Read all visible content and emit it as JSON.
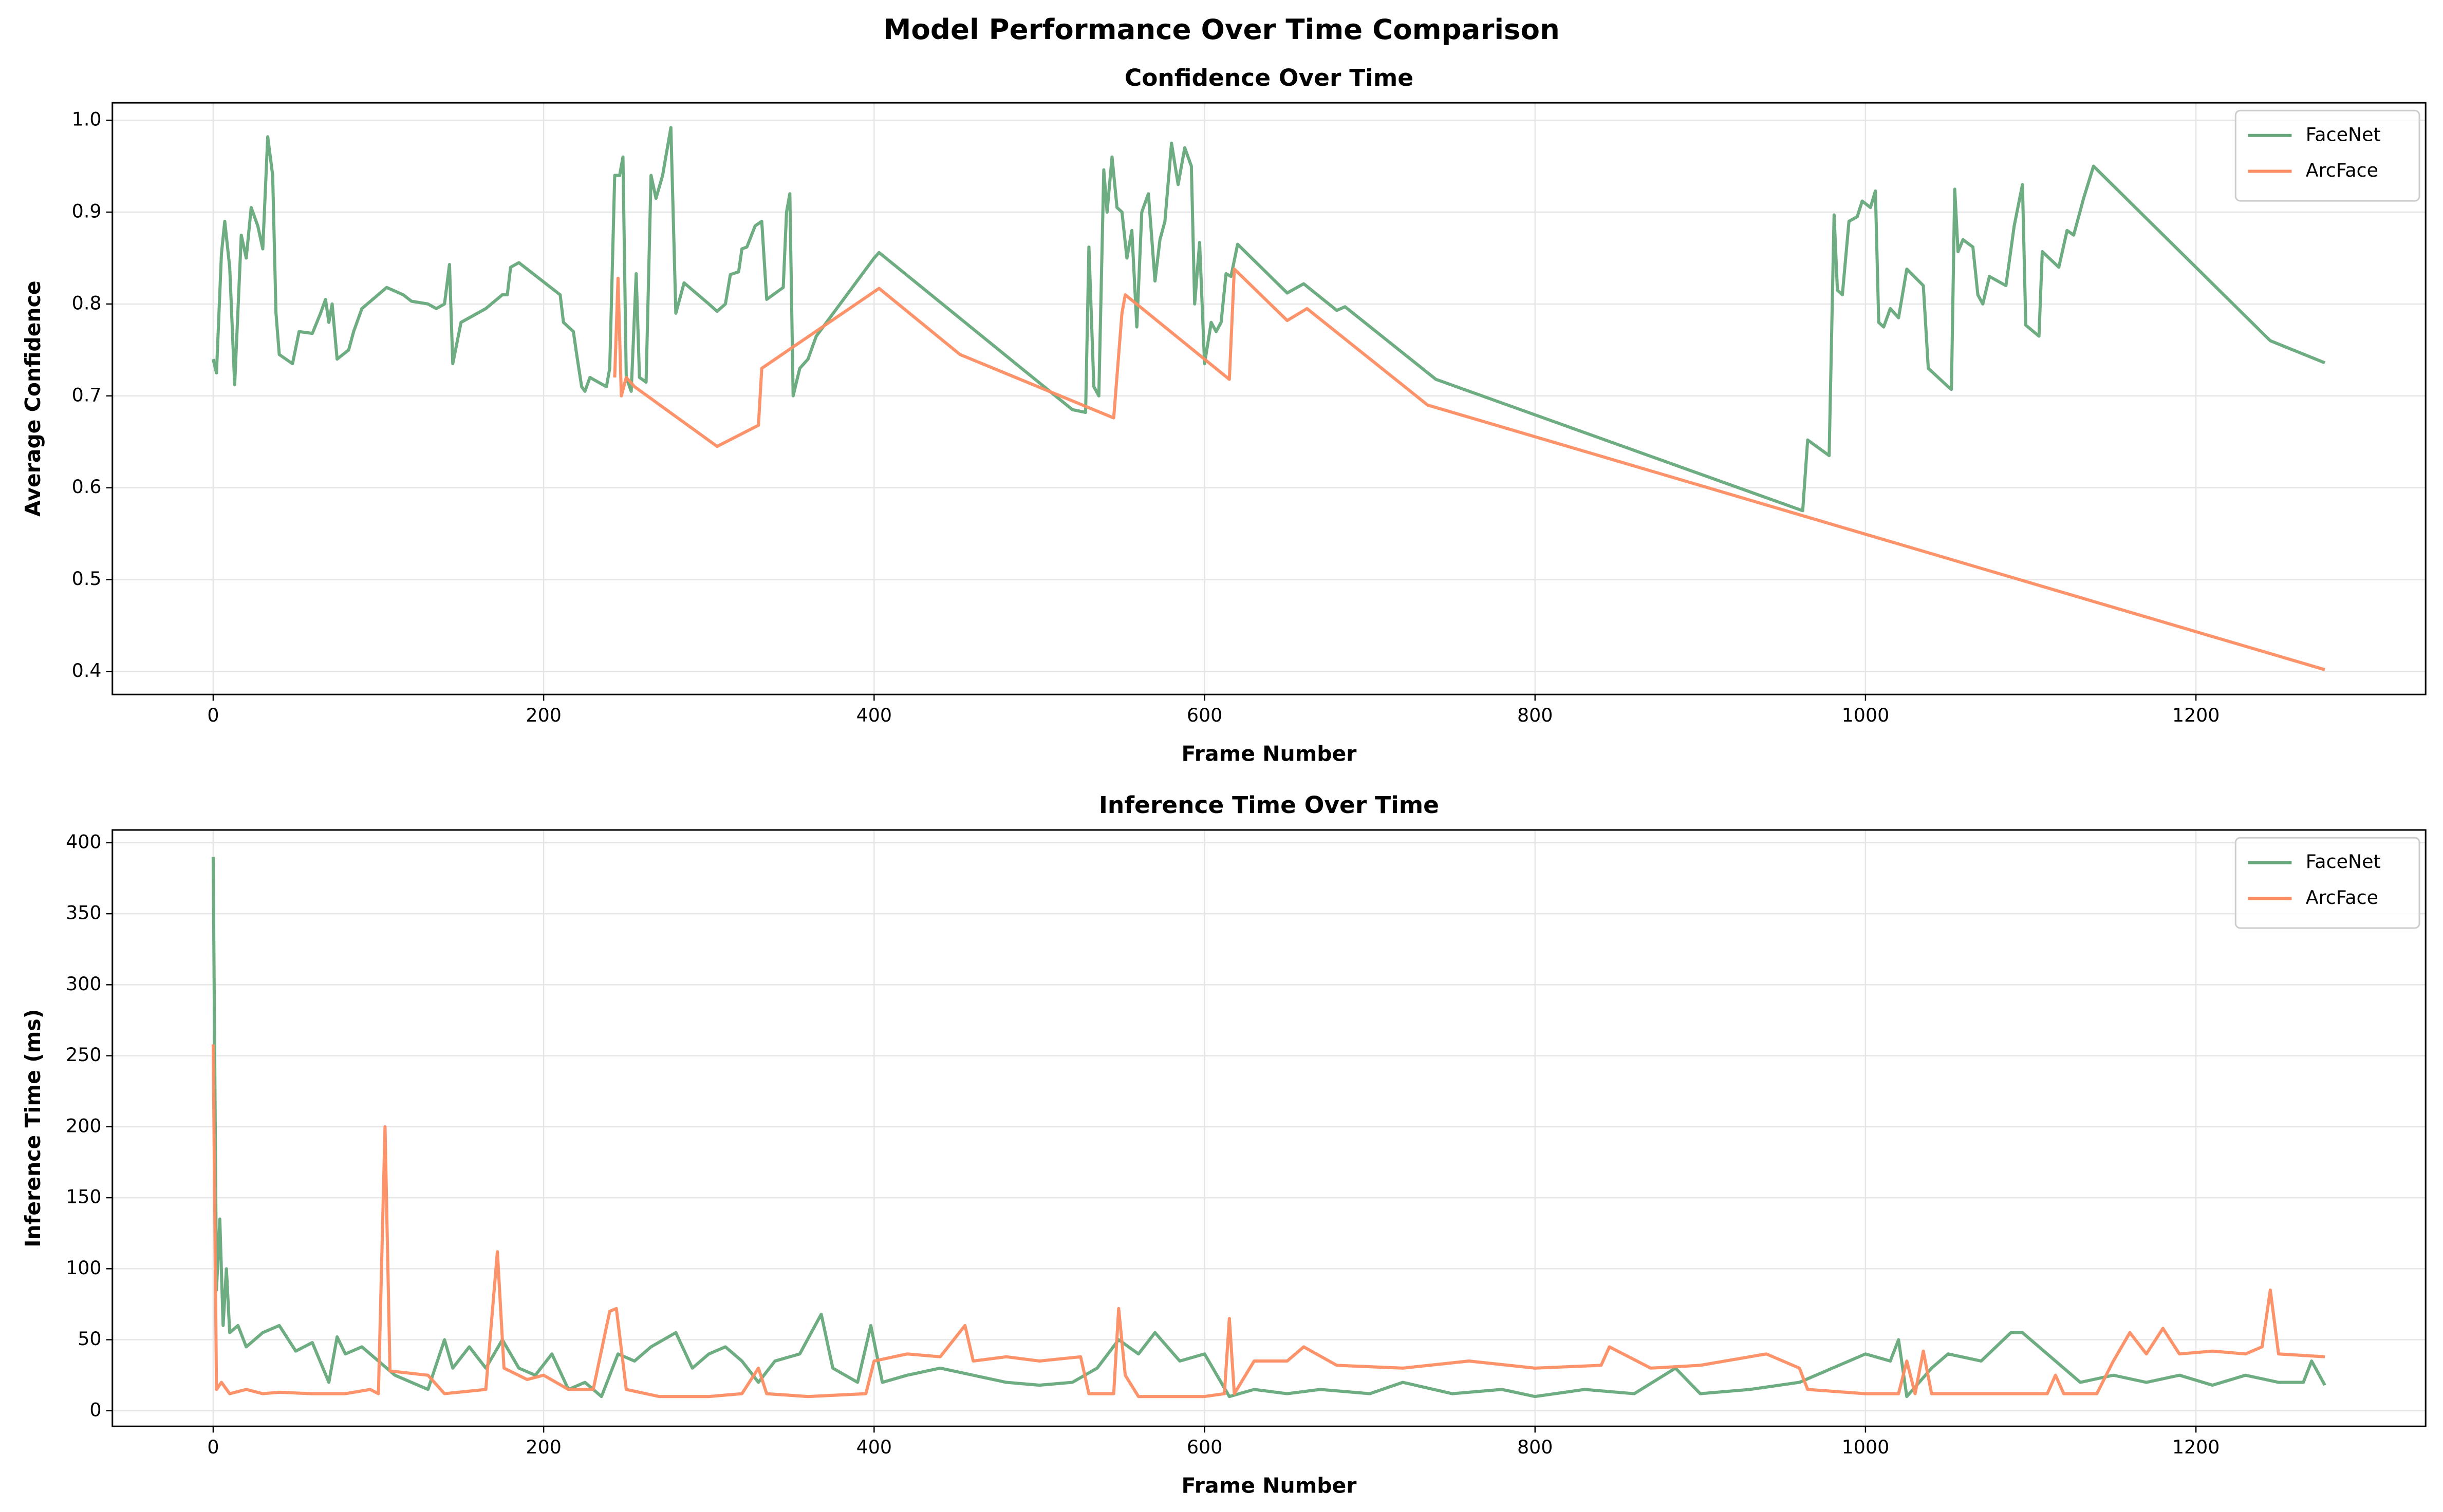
{
  "title": "Model Performance Over Time Comparison",
  "chart_data": [
    {
      "type": "line",
      "title": "Confidence Over Time",
      "xlabel": "Frame Number",
      "ylabel": "Average Confidence",
      "xlim": [
        -61,
        1339
      ],
      "ylim": [
        0.375,
        1.019
      ],
      "xticks": [
        0,
        200,
        400,
        600,
        800,
        1000,
        1200
      ],
      "yticks": [
        0.4,
        0.5,
        0.6,
        0.7,
        0.8,
        0.9,
        {
          "value": 1,
          "label": "1.0"
        }
      ],
      "grid": true,
      "legend": "upper right",
      "series": [
        {
          "name": "FaceNet",
          "color": "#66a87b",
          "x": [
            0,
            2,
            5,
            7,
            10,
            13,
            17,
            20,
            23,
            27,
            30,
            33,
            36,
            38,
            40,
            48,
            52,
            60,
            65,
            68,
            70,
            72,
            75,
            82,
            85,
            90,
            105,
            115,
            120,
            130,
            135,
            140,
            143,
            145,
            150,
            165,
            175,
            178,
            180,
            185,
            210,
            212,
            218,
            220,
            223,
            225,
            228,
            238,
            240,
            243,
            246,
            248,
            250,
            253,
            256,
            258,
            262,
            265,
            268,
            272,
            277,
            280,
            285,
            300,
            305,
            310,
            313,
            318,
            320,
            323,
            328,
            332,
            335,
            345,
            347,
            349,
            351,
            355,
            360,
            365,
            400,
            403,
            520,
            528,
            530,
            533,
            536,
            539,
            541,
            544,
            547,
            550,
            553,
            556,
            559,
            562,
            566,
            570,
            573,
            576,
            580,
            584,
            588,
            592,
            594,
            597,
            600,
            604,
            607,
            610,
            613,
            616,
            620,
            650,
            660,
            680,
            685,
            740,
            962,
            965,
            978,
            981,
            983,
            986,
            990,
            995,
            998,
            1003,
            1006,
            1008,
            1011,
            1015,
            1020,
            1025,
            1035,
            1038,
            1050,
            1052,
            1054,
            1056,
            1059,
            1065,
            1068,
            1071,
            1075,
            1085,
            1090,
            1095,
            1097,
            1105,
            1107,
            1117,
            1122,
            1126,
            1132,
            1138,
            1245,
            1278
          ],
          "values": [
            0.74,
            0.725,
            0.855,
            0.89,
            0.84,
            0.712,
            0.875,
            0.85,
            0.905,
            0.885,
            0.86,
            0.982,
            0.94,
            0.79,
            0.745,
            0.735,
            0.77,
            0.768,
            0.79,
            0.805,
            0.78,
            0.8,
            0.74,
            0.75,
            0.77,
            0.795,
            0.818,
            0.81,
            0.803,
            0.8,
            0.795,
            0.8,
            0.843,
            0.735,
            0.78,
            0.795,
            0.81,
            0.81,
            0.84,
            0.845,
            0.81,
            0.78,
            0.77,
            0.745,
            0.71,
            0.705,
            0.72,
            0.71,
            0.73,
            0.94,
            0.94,
            0.96,
            0.72,
            0.705,
            0.833,
            0.72,
            0.715,
            0.94,
            0.915,
            0.94,
            0.992,
            0.79,
            0.823,
            0.8,
            0.792,
            0.8,
            0.832,
            0.835,
            0.86,
            0.862,
            0.885,
            0.89,
            0.805,
            0.818,
            0.9,
            0.92,
            0.7,
            0.73,
            0.74,
            0.765,
            0.85,
            0.856,
            0.685,
            0.682,
            0.862,
            0.71,
            0.7,
            0.946,
            0.9,
            0.96,
            0.905,
            0.9,
            0.85,
            0.88,
            0.775,
            0.9,
            0.92,
            0.825,
            0.87,
            0.89,
            0.975,
            0.93,
            0.97,
            0.95,
            0.8,
            0.867,
            0.735,
            0.78,
            0.77,
            0.78,
            0.833,
            0.83,
            0.865,
            0.812,
            0.822,
            0.793,
            0.797,
            0.718,
            0.575,
            0.652,
            0.635,
            0.897,
            0.815,
            0.81,
            0.89,
            0.895,
            0.912,
            0.905,
            0.923,
            0.78,
            0.775,
            0.795,
            0.785,
            0.838,
            0.82,
            0.73,
            0.71,
            0.707,
            0.925,
            0.857,
            0.87,
            0.862,
            0.81,
            0.8,
            0.83,
            0.82,
            0.885,
            0.93,
            0.777,
            0.765,
            0.857,
            0.84,
            0.88,
            0.875,
            0.915,
            0.95,
            0.76,
            0.736
          ]
        },
        {
          "name": "ArcFace",
          "color": "#fc8d62",
          "x": [
            243,
            245,
            247,
            250,
            255,
            305,
            330,
            332,
            403,
            452,
            545,
            550,
            552,
            615,
            618,
            650,
            662,
            735,
            1278
          ],
          "values": [
            0.72,
            0.828,
            0.7,
            0.72,
            0.71,
            0.645,
            0.668,
            0.73,
            0.817,
            0.745,
            0.676,
            0.79,
            0.81,
            0.718,
            0.838,
            0.782,
            0.795,
            0.69,
            0.402
          ]
        }
      ]
    },
    {
      "type": "line",
      "title": "Inference Time Over Time",
      "xlabel": "Frame Number",
      "ylabel": "Inference Time (ms)",
      "xlim": [
        -61,
        1339
      ],
      "ylim": [
        -11,
        409
      ],
      "xticks": [
        0,
        200,
        400,
        600,
        800,
        1000,
        1200
      ],
      "yticks": [
        0,
        50,
        100,
        150,
        200,
        250,
        300,
        350,
        400
      ],
      "grid": true,
      "legend": "upper right",
      "series": [
        {
          "name": "FaceNet",
          "color": "#66a87b",
          "x": [
            0,
            2,
            4,
            6,
            8,
            10,
            15,
            20,
            30,
            40,
            50,
            60,
            70,
            75,
            80,
            90,
            100,
            105,
            110,
            120,
            130,
            140,
            145,
            155,
            165,
            175,
            185,
            195,
            205,
            215,
            225,
            235,
            245,
            255,
            265,
            280,
            290,
            300,
            310,
            320,
            330,
            340,
            355,
            368,
            375,
            390,
            398,
            405,
            420,
            440,
            460,
            480,
            500,
            520,
            535,
            548,
            560,
            570,
            585,
            600,
            615,
            630,
            650,
            670,
            700,
            720,
            750,
            780,
            800,
            830,
            860,
            885,
            900,
            930,
            960,
            980,
            1000,
            1015,
            1020,
            1025,
            1040,
            1050,
            1070,
            1088,
            1095,
            1105,
            1115,
            1130,
            1150,
            1170,
            1190,
            1210,
            1230,
            1250,
            1265,
            1270,
            1278
          ],
          "values": [
            390,
            85,
            135,
            60,
            100,
            55,
            60,
            45,
            55,
            60,
            42,
            48,
            20,
            52,
            40,
            45,
            35,
            30,
            25,
            20,
            15,
            50,
            30,
            45,
            30,
            50,
            30,
            25,
            40,
            15,
            20,
            10,
            40,
            35,
            45,
            55,
            30,
            40,
            45,
            35,
            20,
            35,
            40,
            68,
            30,
            20,
            60,
            20,
            25,
            30,
            25,
            20,
            18,
            20,
            30,
            50,
            40,
            55,
            35,
            40,
            10,
            15,
            12,
            15,
            12,
            20,
            12,
            15,
            10,
            15,
            12,
            30,
            12,
            15,
            20,
            30,
            40,
            35,
            50,
            10,
            30,
            40,
            35,
            55,
            55,
            45,
            35,
            20,
            25,
            20,
            25,
            18,
            25,
            20,
            20,
            35,
            18
          ]
        },
        {
          "name": "ArcFace",
          "color": "#fc8d62",
          "x": [
            0,
            2,
            5,
            10,
            20,
            30,
            40,
            60,
            80,
            95,
            100,
            104,
            107,
            130,
            140,
            165,
            172,
            176,
            190,
            200,
            215,
            230,
            240,
            244,
            250,
            270,
            300,
            320,
            330,
            335,
            360,
            395,
            400,
            420,
            440,
            455,
            460,
            480,
            500,
            525,
            530,
            545,
            548,
            552,
            560,
            600,
            612,
            615,
            618,
            630,
            650,
            660,
            680,
            720,
            760,
            800,
            840,
            845,
            870,
            900,
            940,
            960,
            965,
            1000,
            1020,
            1025,
            1030,
            1035,
            1040,
            1080,
            1110,
            1115,
            1120,
            1140,
            1150,
            1160,
            1170,
            1180,
            1190,
            1210,
            1230,
            1240,
            1245,
            1250,
            1278
          ],
          "values": [
            258,
            15,
            20,
            12,
            15,
            12,
            13,
            12,
            12,
            15,
            12,
            200,
            28,
            25,
            12,
            15,
            112,
            30,
            22,
            25,
            15,
            15,
            70,
            72,
            15,
            10,
            10,
            12,
            30,
            12,
            10,
            12,
            35,
            40,
            38,
            60,
            35,
            38,
            35,
            38,
            12,
            12,
            72,
            25,
            10,
            10,
            12,
            65,
            12,
            35,
            35,
            45,
            32,
            30,
            35,
            30,
            32,
            45,
            30,
            32,
            40,
            30,
            15,
            12,
            12,
            35,
            12,
            42,
            12,
            12,
            12,
            25,
            12,
            12,
            35,
            55,
            40,
            58,
            40,
            42,
            40,
            45,
            85,
            40,
            38
          ]
        }
      ]
    }
  ]
}
